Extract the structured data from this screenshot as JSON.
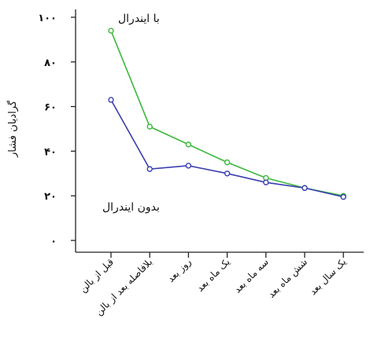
{
  "chart_data": {
    "type": "line",
    "ylabel": "گرادیان فشار",
    "ylim": [
      0,
      100
    ],
    "yticks": [
      {
        "value": 0,
        "label": "۰"
      },
      {
        "value": 20,
        "label": "۲۰"
      },
      {
        "value": 40,
        "label": "۴۰"
      },
      {
        "value": 60,
        "label": "۶۰"
      },
      {
        "value": 80,
        "label": "۸۰"
      },
      {
        "value": 100,
        "label": "۱۰۰"
      }
    ],
    "categories": [
      "قبل از بالن",
      "بلافاصله بعد از بالن",
      "روز بعد",
      "یک ماه بعد",
      "سه ماه بعد",
      "شش ماه بعد",
      "یک سال بعد"
    ],
    "series": [
      {
        "name": "با ایندرال",
        "color": "#3cb83c",
        "values": [
          94,
          51,
          43,
          35,
          28,
          23.5,
          20
        ]
      },
      {
        "name": "بدون ایندرال",
        "color": "#3a3fb0",
        "values": [
          63,
          32,
          33.5,
          30,
          26,
          23.5,
          19.5
        ]
      }
    ],
    "grid": false,
    "legend": "annotations"
  }
}
